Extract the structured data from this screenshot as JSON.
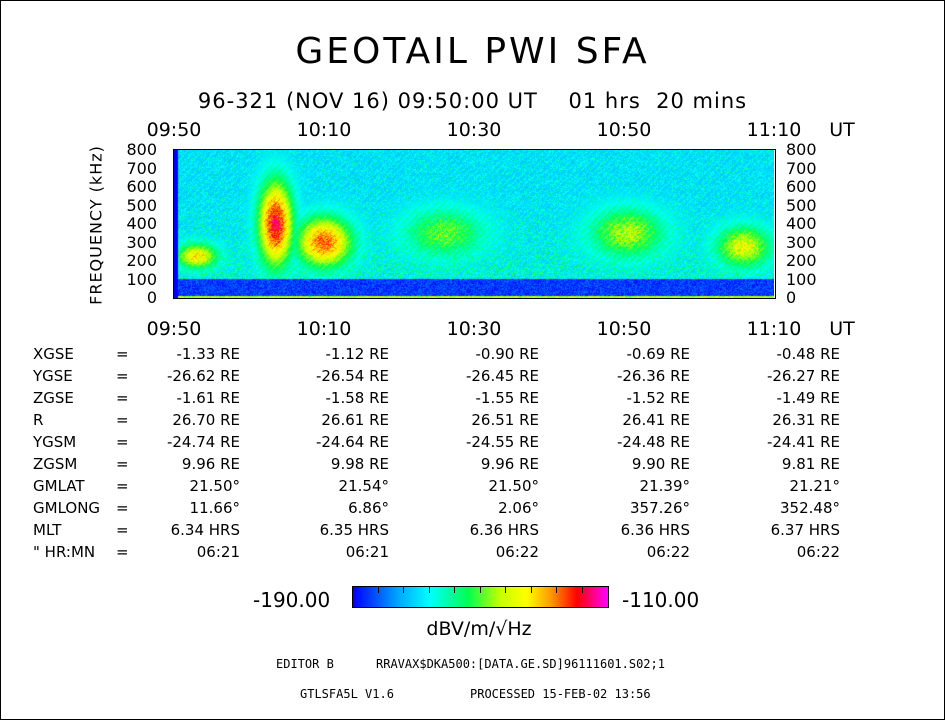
{
  "title": "GEOTAIL PWI SFA",
  "subtitle": "96-321 (NOV 16) 09:50:00 UT    01 hrs  20 mins",
  "colors": {
    "background": "#ffffff",
    "text": "#000000",
    "low": "#0000ff",
    "high": "#ff00ff"
  },
  "chart_data": {
    "type": "heatmap",
    "x_ticks": [
      "09:50",
      "10:10",
      "10:30",
      "10:50",
      "11:10"
    ],
    "x_unit": "UT",
    "xlim_minutes": [
      0,
      80
    ],
    "ylabel": "FREQUENCY (kHz)",
    "y_ticks": [
      800,
      700,
      600,
      500,
      400,
      300,
      200,
      100,
      0
    ],
    "ylim": [
      0,
      800
    ],
    "colorbar": {
      "min_label": "-190.00",
      "max_label": "-110.00",
      "min": -190,
      "max": -110,
      "unit": "dBV/m/√Hz"
    },
    "hot_regions": [
      {
        "t_start_min": 0,
        "t_end_min": 6,
        "f_low_khz": 150,
        "f_high_khz": 300,
        "level_dB": -135
      },
      {
        "t_start_min": 11,
        "t_end_min": 16,
        "f_low_khz": 150,
        "f_high_khz": 650,
        "level_dB": -118
      },
      {
        "t_start_min": 16,
        "t_end_min": 24,
        "f_low_khz": 150,
        "f_high_khz": 450,
        "level_dB": -125
      },
      {
        "t_start_min": 30,
        "t_end_min": 42,
        "f_low_khz": 200,
        "f_high_khz": 500,
        "level_dB": -150
      },
      {
        "t_start_min": 55,
        "t_end_min": 66,
        "f_low_khz": 200,
        "f_high_khz": 500,
        "level_dB": -145
      },
      {
        "t_start_min": 72,
        "t_end_min": 80,
        "f_low_khz": 150,
        "f_high_khz": 400,
        "level_dB": -140
      }
    ],
    "background_level_dB": -172,
    "low_band_level_dB": -190
  },
  "ephemeris": {
    "rows": [
      {
        "name": "XGSE",
        "eq": "=",
        "values": [
          "-1.33 RE",
          "-1.12 RE",
          "-0.90 RE",
          "-0.69 RE",
          "-0.48 RE"
        ]
      },
      {
        "name": "YGSE",
        "eq": "=",
        "values": [
          "-26.62 RE",
          "-26.54 RE",
          "-26.45 RE",
          "-26.36 RE",
          "-26.27 RE"
        ]
      },
      {
        "name": "ZGSE",
        "eq": "=",
        "values": [
          "-1.61 RE",
          "-1.58 RE",
          "-1.55 RE",
          "-1.52 RE",
          "-1.49 RE"
        ]
      },
      {
        "name": "R",
        "eq": "=",
        "values": [
          "26.70 RE",
          "26.61 RE",
          "26.51 RE",
          "26.41 RE",
          "26.31 RE"
        ]
      },
      {
        "name": "YGSM",
        "eq": "=",
        "values": [
          "-24.74 RE",
          "-24.64 RE",
          "-24.55 RE",
          "-24.48 RE",
          "-24.41 RE"
        ]
      },
      {
        "name": "ZGSM",
        "eq": "=",
        "values": [
          "9.96 RE",
          "9.98 RE",
          "9.96 RE",
          "9.90 RE",
          "9.81 RE"
        ]
      },
      {
        "name": "GMLAT",
        "eq": "=",
        "values": [
          "21.50°",
          "21.54°",
          "21.50°",
          "21.39°",
          "21.21°"
        ]
      },
      {
        "name": "GMLONG",
        "eq": "=",
        "values": [
          "11.66°",
          "6.86°",
          "2.06°",
          "357.26°",
          "352.48°"
        ]
      },
      {
        "name": "MLT",
        "eq": "=",
        "values": [
          "6.34 HRS",
          "6.35 HRS",
          "6.36 HRS",
          "6.36 HRS",
          "6.37 HRS"
        ]
      },
      {
        "name": "\" HR:MN",
        "eq": "=",
        "values": [
          "06:21",
          "06:21",
          "06:22",
          "06:22",
          "06:22"
        ]
      }
    ]
  },
  "footer": {
    "editor": "EDITOR B",
    "path": "RRAVAX$DKA500:[DATA.GE.SD]96111601.S02;1",
    "version": "GTLSFA5L V1.6",
    "processed": "PROCESSED 15-FEB-02  13:56"
  }
}
